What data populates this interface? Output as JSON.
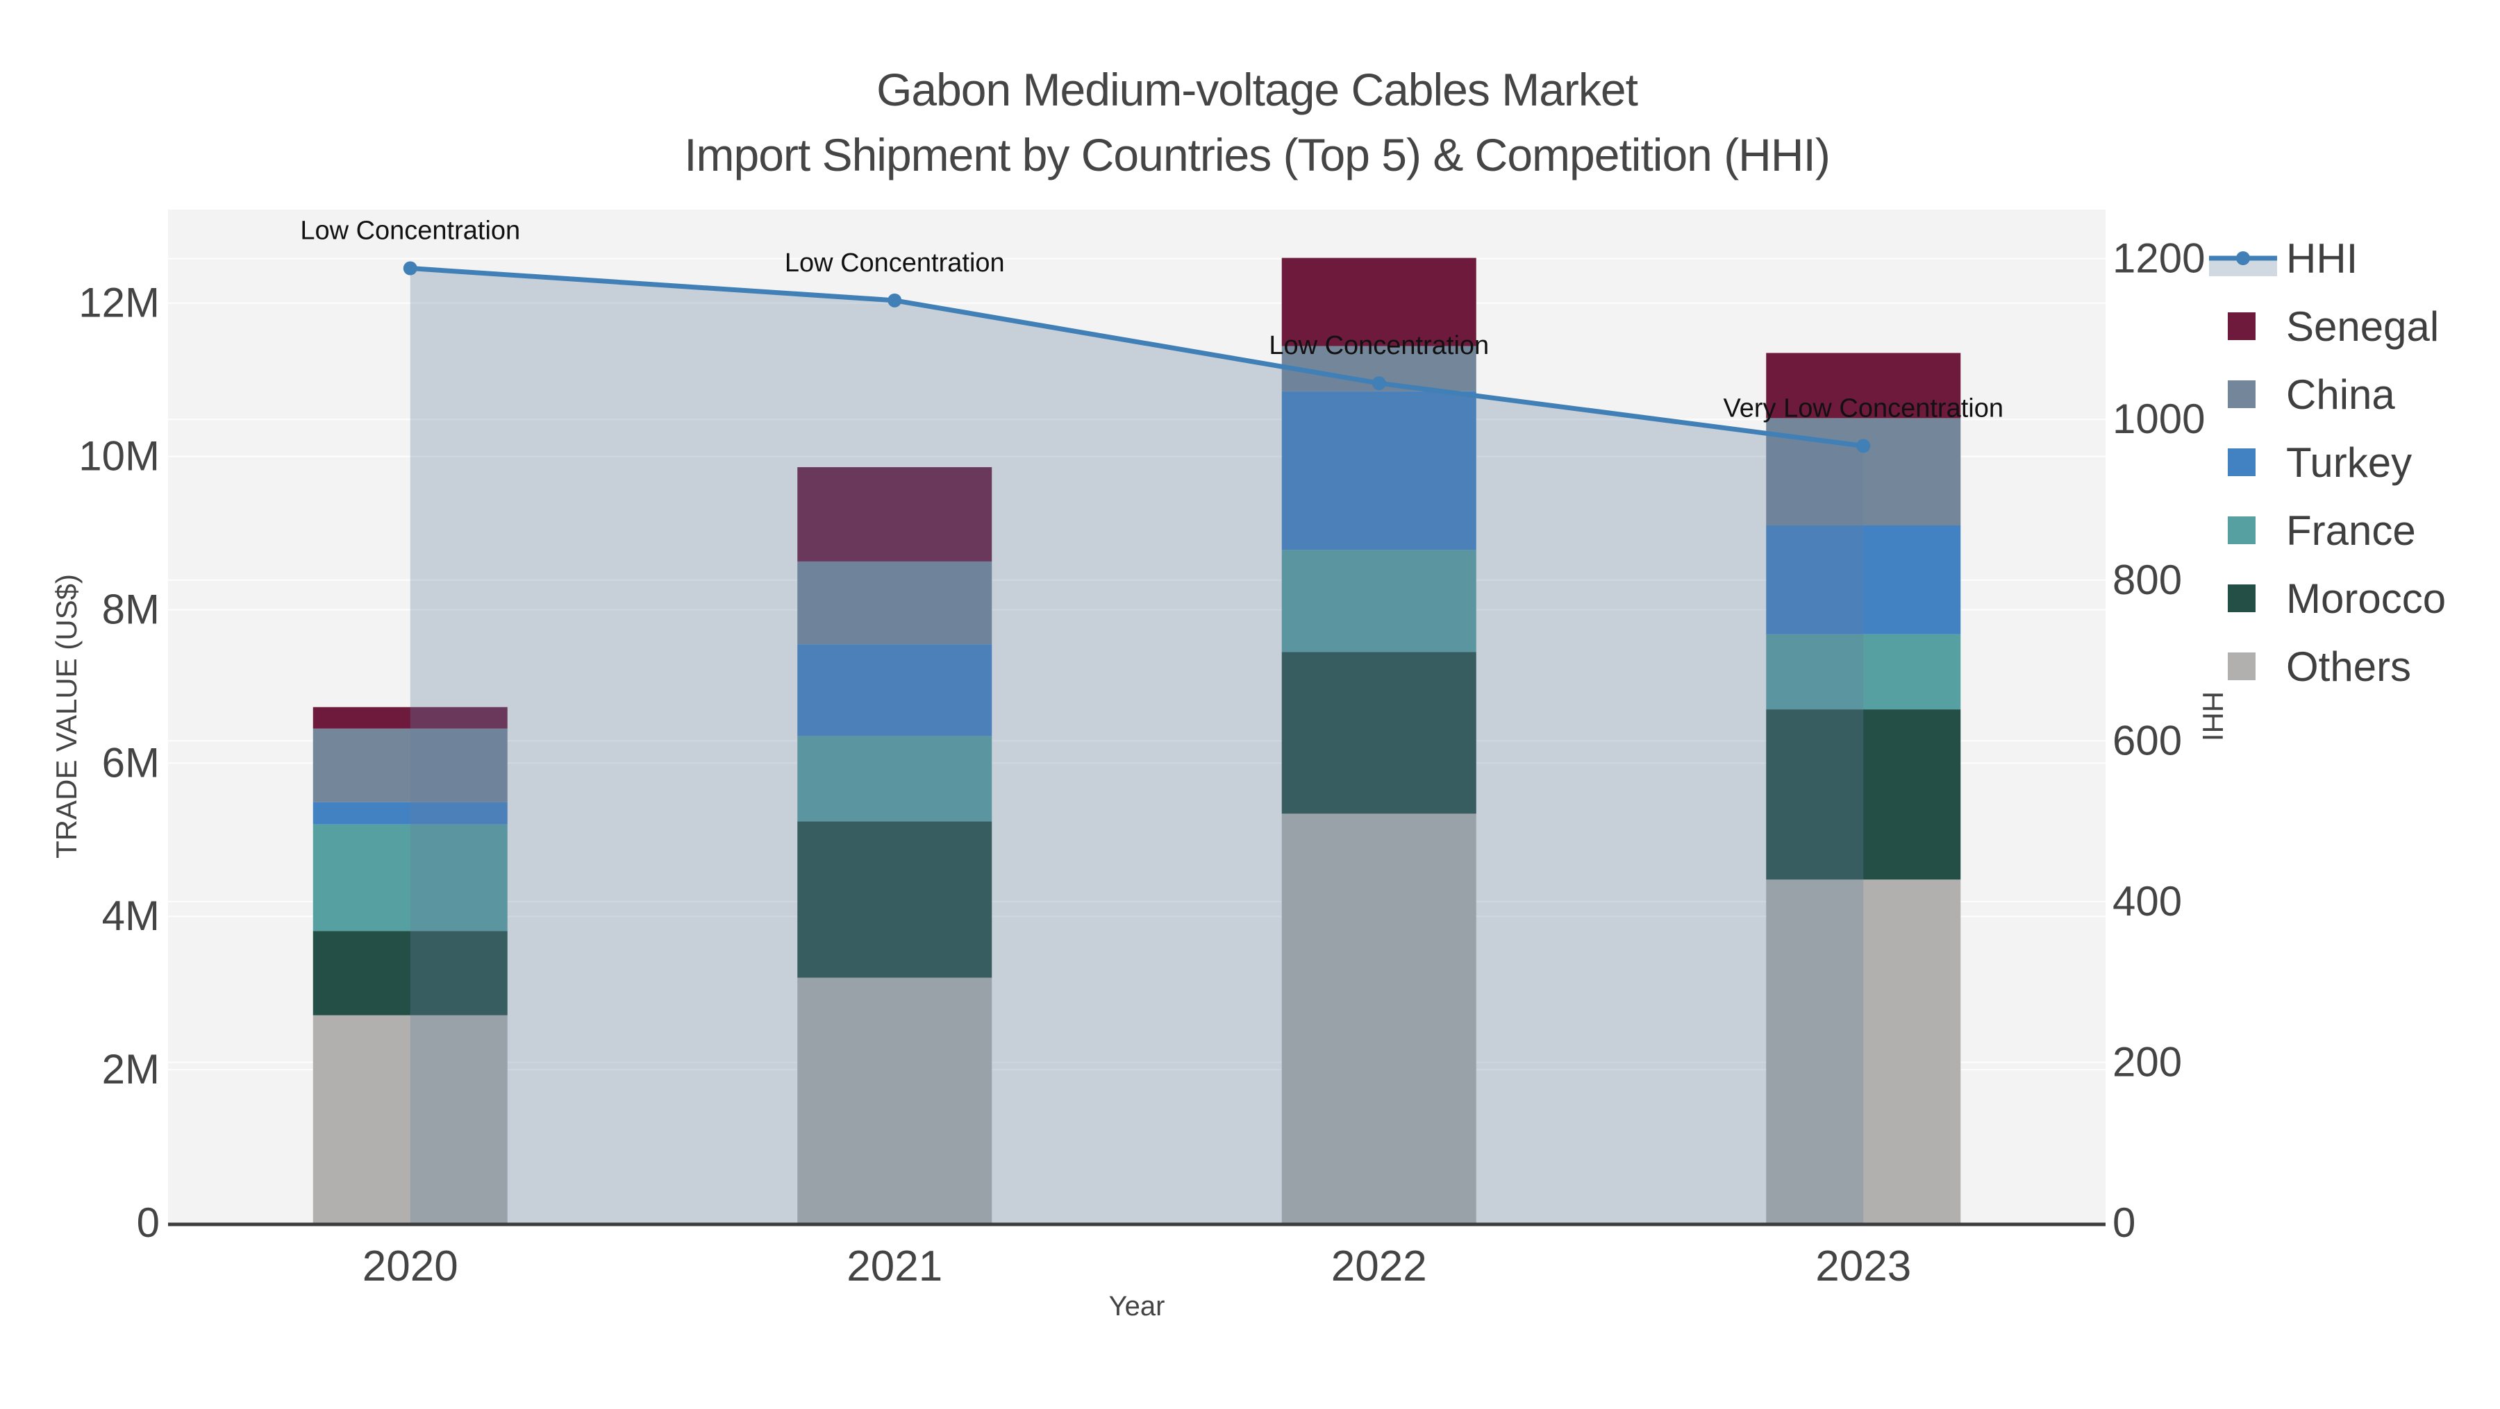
{
  "title": {
    "line1": "Gabon Medium-voltage Cables Market",
    "line2": "Import Shipment by Countries (Top 5) & Competition (HHI)"
  },
  "chart_data": {
    "type": "bar+line",
    "subtype": "stacked-bars-with-secondary-line",
    "categories": [
      "2020",
      "2021",
      "2022",
      "2023"
    ],
    "xlabel": "Year",
    "ylabel_left": "TRADE VALUE (US$)",
    "ylabel_right": "HHI",
    "y_left_ticks": [
      {
        "value": 0,
        "label": "0"
      },
      {
        "value": 2,
        "label": "2M"
      },
      {
        "value": 4,
        "label": "4M"
      },
      {
        "value": 6,
        "label": "6M"
      },
      {
        "value": 8,
        "label": "8M"
      },
      {
        "value": 10,
        "label": "10M"
      },
      {
        "value": 12,
        "label": "12M"
      }
    ],
    "y_left_max_musd": 13.22,
    "y_right_ticks": [
      {
        "value": 0,
        "label": "0"
      },
      {
        "value": 200,
        "label": "200"
      },
      {
        "value": 400,
        "label": "400"
      },
      {
        "value": 600,
        "label": "600"
      },
      {
        "value": 800,
        "label": "800"
      },
      {
        "value": 1000,
        "label": "1000"
      },
      {
        "value": 1200,
        "label": "1200"
      }
    ],
    "y_right_max": 1261,
    "grid": true,
    "legend_position": "right",
    "stack_order_bottom_to_top": [
      "Others",
      "Morocco",
      "France",
      "Turkey",
      "China",
      "Senegal"
    ],
    "series": [
      {
        "name": "Senegal",
        "color": "#6e1a3d",
        "values_musd": [
          0.28,
          1.23,
          1.15,
          0.85
        ]
      },
      {
        "name": "China",
        "color": "#748699",
        "values_musd": [
          0.96,
          1.08,
          0.59,
          1.4
        ]
      },
      {
        "name": "Turkey",
        "color": "#4282c3",
        "values_musd": [
          0.29,
          1.2,
          2.07,
          1.42
        ]
      },
      {
        "name": "France",
        "color": "#56a0a1",
        "values_musd": [
          1.39,
          1.11,
          1.33,
          0.98
        ]
      },
      {
        "name": "Morocco",
        "color": "#244f47",
        "values_musd": [
          1.1,
          2.04,
          2.11,
          2.22
        ]
      },
      {
        "name": "Others",
        "color": "#b1b0ae",
        "values_musd": [
          2.71,
          3.2,
          5.34,
          4.48
        ]
      }
    ],
    "totals_musd": [
      6.73,
      9.86,
      12.59,
      11.35
    ],
    "hhi": {
      "name": "HHI",
      "line_color": "#4180b6",
      "fill_color": "rgba(100,125,160,0.30)",
      "values": [
        1188,
        1148,
        1045,
        967
      ],
      "annotations": [
        "Low Concentration",
        "Low Concentration",
        "Low Concentration",
        "Very Low Concentration"
      ]
    },
    "legend_order": [
      "HHI",
      "Senegal",
      "China",
      "Turkey",
      "France",
      "Morocco",
      "Others"
    ],
    "colors": {
      "plot_background": "#f3f3f3",
      "figure_background": "#ffffff",
      "gridline": "#ffffff",
      "axis_line": "#3c3c3c",
      "tick_text": "#444444",
      "legend_text": "#3f3f3f",
      "annotation_text": "#111111"
    }
  }
}
